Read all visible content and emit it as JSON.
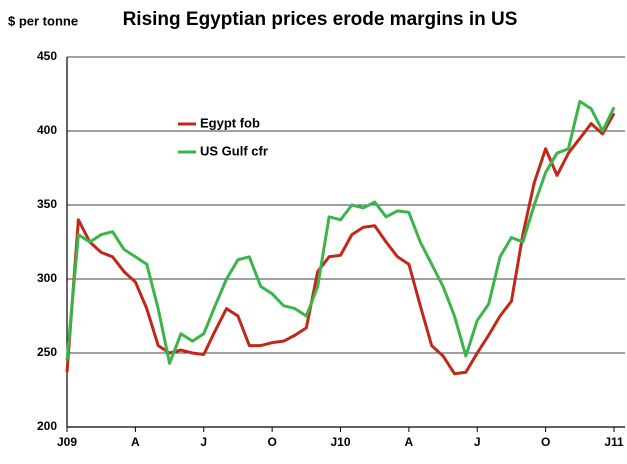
{
  "chart_data": {
    "type": "line",
    "title": "Rising Egyptian prices erode margins in US",
    "y_label": "$ per tonne",
    "categories": [
      "J09",
      null,
      null,
      null,
      null,
      null,
      "A",
      null,
      null,
      null,
      null,
      null,
      "J",
      null,
      null,
      null,
      null,
      null,
      "O",
      null,
      null,
      null,
      null,
      null,
      "J10",
      null,
      null,
      null,
      null,
      null,
      "A",
      null,
      null,
      null,
      null,
      null,
      "J",
      null,
      null,
      null,
      null,
      null,
      "O",
      null,
      null,
      null,
      null,
      null,
      "J11"
    ],
    "series": [
      {
        "name": "Egypt fob",
        "color": "#c0281a",
        "values": [
          237,
          340,
          325,
          318,
          315,
          305,
          298,
          280,
          255,
          250,
          252,
          250,
          249,
          265,
          280,
          275,
          255,
          255,
          257,
          258,
          262,
          267,
          305,
          315,
          316,
          330,
          335,
          336,
          325,
          315,
          310,
          282,
          255,
          248,
          236,
          237,
          250,
          262,
          275,
          285,
          330,
          365,
          388,
          370,
          385,
          395,
          405,
          398,
          412
        ]
      },
      {
        "name": "US Gulf cfr",
        "color": "#3cb44a",
        "values": [
          245,
          330,
          325,
          330,
          332,
          320,
          315,
          310,
          280,
          243,
          263,
          258,
          263,
          282,
          300,
          313,
          315,
          295,
          290,
          282,
          280,
          275,
          295,
          342,
          340,
          350,
          348,
          352,
          342,
          346,
          345,
          325,
          310,
          295,
          275,
          248,
          272,
          283,
          315,
          328,
          325,
          350,
          372,
          385,
          388,
          420,
          415,
          400,
          416
        ]
      }
    ],
    "ylim": [
      200,
      450
    ],
    "yticks": [
      200,
      250,
      300,
      350,
      400,
      450
    ],
    "grid": true
  }
}
